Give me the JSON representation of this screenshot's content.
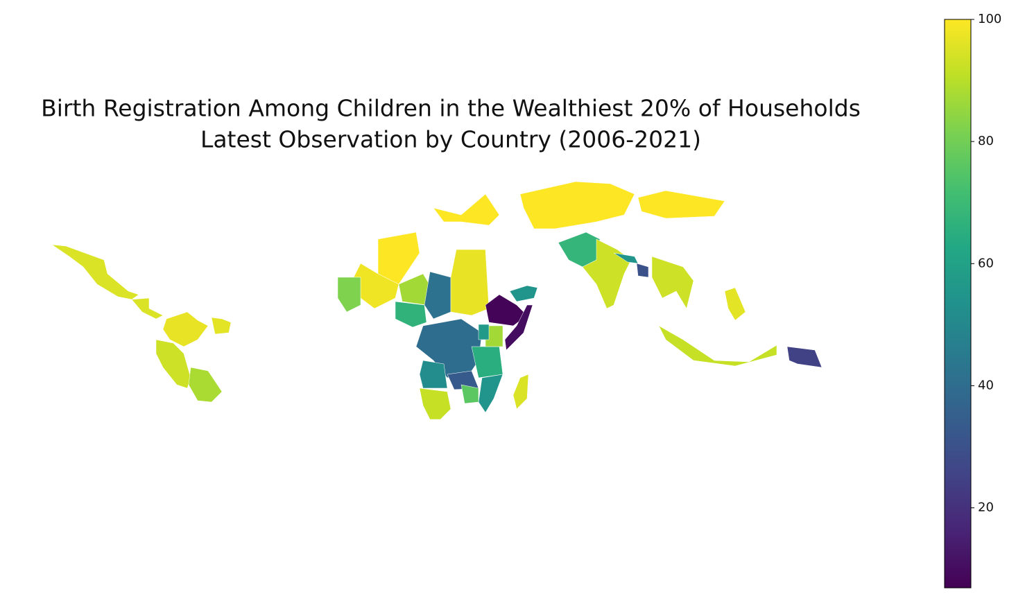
{
  "chart_data": {
    "type": "choropleth",
    "title": "Birth Registration Among Children in the Wealthiest 20% of Households",
    "subtitle": "Latest Observation by Country (2006-2021)",
    "colormap": "viridis",
    "values": [
      95,
      95,
      97,
      93,
      88,
      96,
      100,
      98,
      82,
      87,
      42,
      67,
      97,
      8,
      10,
      55,
      40,
      52,
      33,
      65,
      87,
      55,
      92,
      95,
      100,
      100,
      100,
      68,
      93,
      55,
      30,
      93,
      96,
      92,
      25,
      76,
      57
    ],
    "clim": [
      6.9,
      100
    ],
    "cticks": [
      20,
      40,
      60,
      80,
      100
    ]
  }
}
